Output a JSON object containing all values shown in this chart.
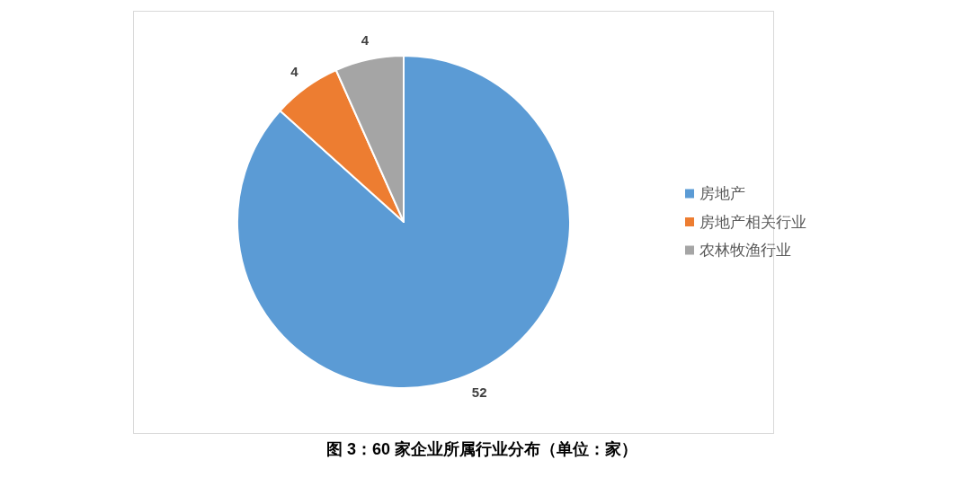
{
  "chart_data": {
    "type": "pie",
    "title": "图 3：60 家企业所属行业分布（单位：家）",
    "categories": [
      "房地产",
      "房地产相关行业",
      "农林牧渔行业"
    ],
    "values": [
      52,
      4,
      4
    ],
    "colors": [
      "#5b9bd5",
      "#ed7d31",
      "#a5a5a5"
    ],
    "data_labels": true,
    "legend": "right"
  }
}
